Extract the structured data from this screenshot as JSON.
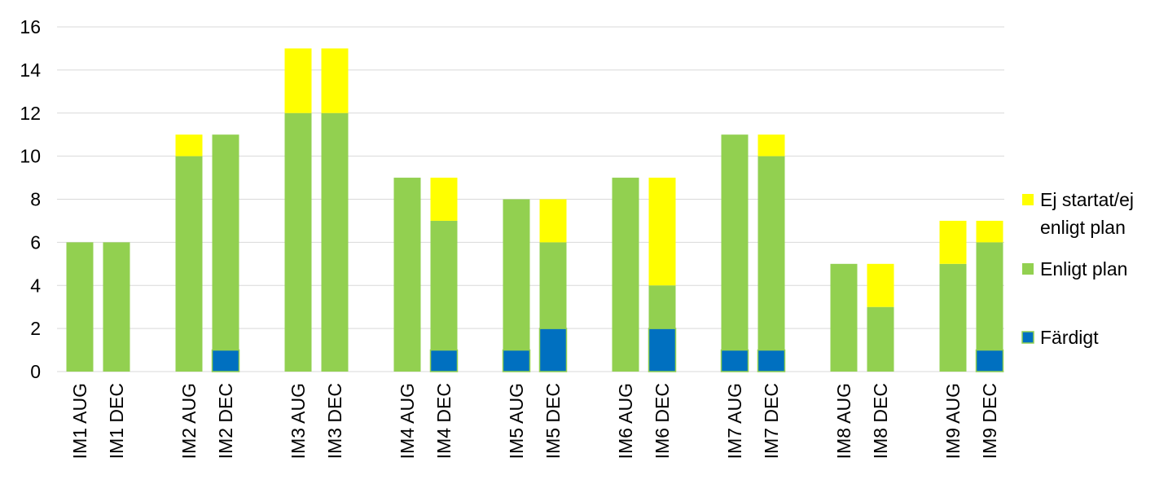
{
  "chart_data": {
    "type": "bar",
    "stacked": true,
    "categories": [
      "IM1 AUG",
      "IM1 DEC",
      "IM2 AUG",
      "IM2 DEC",
      "IM3 AUG",
      "IM3 DEC",
      "IM4 AUG",
      "IM4 DEC",
      "IM5 AUG",
      "IM5 DEC",
      "IM6 AUG",
      "IM6 DEC",
      "IM7 AUG",
      "IM7 DEC",
      "IM8 AUG",
      "IM8 DEC",
      "IM9 AUG",
      "IM9 DEC"
    ],
    "groups": [
      [
        "IM1 AUG",
        "IM1 DEC"
      ],
      [
        "IM2 AUG",
        "IM2 DEC"
      ],
      [
        "IM3 AUG",
        "IM3 DEC"
      ],
      [
        "IM4 AUG",
        "IM4 DEC"
      ],
      [
        "IM5 AUG",
        "IM5 DEC"
      ],
      [
        "IM6 AUG",
        "IM6 DEC"
      ],
      [
        "IM7 AUG",
        "IM7 DEC"
      ],
      [
        "IM8 AUG",
        "IM8 DEC"
      ],
      [
        "IM9 AUG",
        "IM9 DEC"
      ]
    ],
    "series": [
      {
        "name": "Färdigt",
        "color": "#0070c0",
        "values": [
          0,
          0,
          0,
          1,
          0,
          0,
          0,
          1,
          1,
          2,
          0,
          2,
          1,
          1,
          0,
          0,
          0,
          1
        ]
      },
      {
        "name": "Enligt plan",
        "color": "#92d050",
        "values": [
          6,
          6,
          10,
          10,
          12,
          12,
          9,
          6,
          7,
          4,
          9,
          2,
          10,
          9,
          5,
          3,
          5,
          5
        ]
      },
      {
        "name": "Ej startat/ej enligt plan",
        "color": "#ffff00",
        "values": [
          0,
          0,
          1,
          0,
          3,
          3,
          0,
          2,
          0,
          2,
          0,
          5,
          0,
          1,
          0,
          2,
          2,
          1
        ]
      }
    ],
    "ylim": [
      0,
      16
    ],
    "yticks": [
      0,
      2,
      4,
      6,
      8,
      10,
      12,
      14,
      16
    ],
    "title": "",
    "xlabel": "",
    "ylabel": "",
    "grid": "horizontal",
    "legend_position": "right",
    "legend_order": [
      "Ej startat/ej enligt plan",
      "Enligt plan",
      "Färdigt"
    ],
    "legend_lines": {
      "Ej startat/ej enligt plan": [
        "Ej startat/ej",
        "enligt plan"
      ],
      "Enligt plan": [
        "Enligt plan"
      ],
      "Färdigt": [
        "Färdigt"
      ]
    }
  }
}
